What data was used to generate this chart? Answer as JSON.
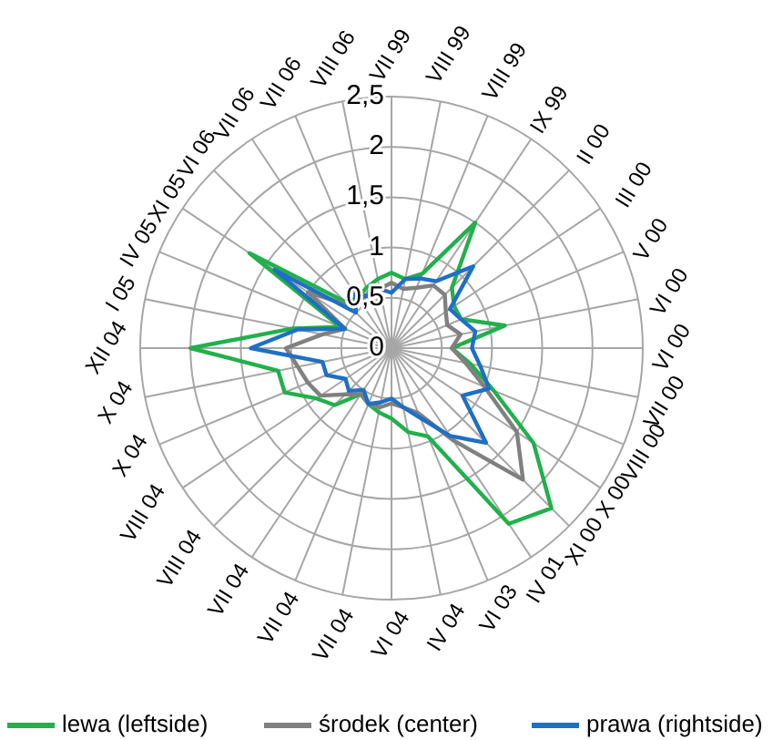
{
  "chart_data": {
    "type": "radar",
    "categories": [
      "VII 99",
      "VIII 99",
      "VIII 99",
      "IX 99",
      "II 00",
      "III 00",
      "V 00",
      "VI 00",
      "VI 00",
      "VII 00",
      "VIII 00",
      "X 00",
      "XI 00",
      "IV 01",
      "VI 03",
      "IV 04",
      "VI 04",
      "VII 04",
      "VII 04",
      "VII 04",
      "VIII 04",
      "VIII 04",
      "X 04",
      "X 04",
      "XII 04",
      "I 05",
      "IV 05",
      "XI 05",
      "VI 06",
      "VII 06",
      "VII 06",
      "VIII 06"
    ],
    "series": [
      {
        "name": "lewa (leftside)",
        "color": "#21b04b",
        "values": [
          0.75,
          0.7,
          0.8,
          1.5,
          0.85,
          0.75,
          0.75,
          1.15,
          0.6,
          0.8,
          1.1,
          1.7,
          2.25,
          2.1,
          0.95,
          0.85,
          0.7,
          0.65,
          0.6,
          0.55,
          0.8,
          0.9,
          1.15,
          1.15,
          2.0,
          1.0,
          0.55,
          1.7,
          0.65,
          0.6,
          0.65,
          0.7
        ]
      },
      {
        "name": "środek (center)",
        "color": "#808080",
        "values": [
          0.65,
          0.6,
          0.65,
          0.75,
          0.75,
          0.65,
          0.6,
          0.7,
          0.6,
          0.75,
          1.0,
          1.5,
          1.85,
          1.1,
          0.7,
          0.6,
          0.55,
          0.6,
          0.6,
          0.55,
          0.65,
          0.85,
          0.9,
          0.95,
          1.05,
          0.7,
          0.5,
          1.0,
          0.6,
          0.55,
          0.6,
          0.6
        ]
      },
      {
        "name": "prawa (rightside)",
        "color": "#1f6fc5",
        "values": [
          0.55,
          0.7,
          0.75,
          0.8,
          1.15,
          0.7,
          0.75,
          0.85,
          0.8,
          0.9,
          1.05,
          0.85,
          1.33,
          1.05,
          0.75,
          0.6,
          0.5,
          0.55,
          0.6,
          0.5,
          0.6,
          0.55,
          0.7,
          0.7,
          1.4,
          0.95,
          0.5,
          1.4,
          0.5,
          0.65,
          0.55,
          0.6
        ]
      }
    ],
    "ylim": [
      0,
      2.5
    ],
    "yticks": [
      0,
      {
        "value": 0.5,
        "label": "0,5"
      },
      1,
      {
        "value": 1.5,
        "label": "1,5"
      },
      2,
      {
        "value": 2.5,
        "label": "2,5"
      }
    ],
    "grid": true,
    "legend": "bottom",
    "marker": "none"
  }
}
